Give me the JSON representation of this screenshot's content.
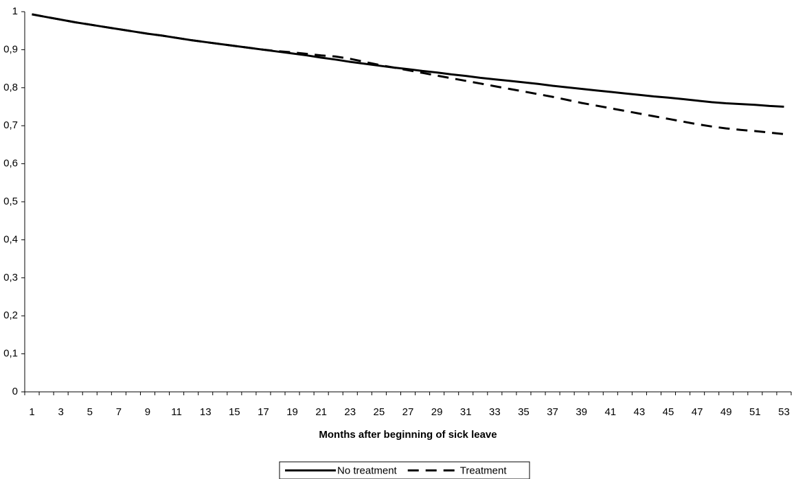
{
  "chart_data": {
    "type": "line",
    "x_label": "Months after beginning of sick leave",
    "categories": [
      1,
      null,
      3,
      null,
      5,
      null,
      7,
      null,
      9,
      null,
      11,
      null,
      13,
      null,
      15,
      null,
      17,
      null,
      19,
      null,
      21,
      null,
      23,
      null,
      25,
      null,
      27,
      null,
      29,
      null,
      31,
      null,
      33,
      null,
      35,
      null,
      37,
      null,
      39,
      null,
      41,
      null,
      43,
      null,
      45,
      null,
      47,
      null,
      49,
      null,
      51,
      null,
      53
    ],
    "series": [
      {
        "name": "No treatment",
        "color": "#000000",
        "dash": "solid",
        "values": [
          0.993,
          0.986,
          0.979,
          0.972,
          0.966,
          0.96,
          0.954,
          0.948,
          0.942,
          0.937,
          0.931,
          0.925,
          0.92,
          0.915,
          0.91,
          0.905,
          0.9,
          0.895,
          0.89,
          0.885,
          0.879,
          0.874,
          0.868,
          0.863,
          0.858,
          0.853,
          0.849,
          0.844,
          0.84,
          0.835,
          0.831,
          0.826,
          0.822,
          0.818,
          0.814,
          0.81,
          0.805,
          0.801,
          0.797,
          0.793,
          0.789,
          0.785,
          0.781,
          0.777,
          0.774,
          0.77,
          0.766,
          0.762,
          0.759,
          0.757,
          0.755,
          0.752,
          0.75
        ]
      },
      {
        "name": "Treatment",
        "color": "#000000",
        "dash": "dashed",
        "values": [
          0.993,
          0.986,
          0.979,
          0.972,
          0.966,
          0.96,
          0.954,
          0.948,
          0.942,
          0.937,
          0.931,
          0.925,
          0.92,
          0.915,
          0.91,
          0.905,
          0.9,
          0.896,
          0.893,
          0.889,
          0.885,
          0.882,
          0.876,
          0.868,
          0.86,
          0.853,
          0.846,
          0.839,
          0.832,
          0.825,
          0.818,
          0.811,
          0.804,
          0.797,
          0.79,
          0.783,
          0.776,
          0.768,
          0.76,
          0.753,
          0.746,
          0.739,
          0.732,
          0.725,
          0.718,
          0.711,
          0.704,
          0.698,
          0.693,
          0.689,
          0.686,
          0.682,
          0.678
        ]
      }
    ],
    "ylim": [
      0,
      1
    ],
    "yticks": [
      0,
      {
        "value": 0.1,
        "label": "0,1"
      },
      {
        "value": 0.2,
        "label": "0,2"
      },
      {
        "value": 0.3,
        "label": "0,3"
      },
      {
        "value": 0.4,
        "label": "0,4"
      },
      {
        "value": 0.5,
        "label": "0,5"
      },
      {
        "value": 0.6,
        "label": "0,6"
      },
      {
        "value": 0.7,
        "label": "0,7"
      },
      {
        "value": 0.8,
        "label": "0,8"
      },
      {
        "value": 0.9,
        "label": "0,9"
      },
      1
    ],
    "grid": false,
    "legend": "bottom"
  }
}
